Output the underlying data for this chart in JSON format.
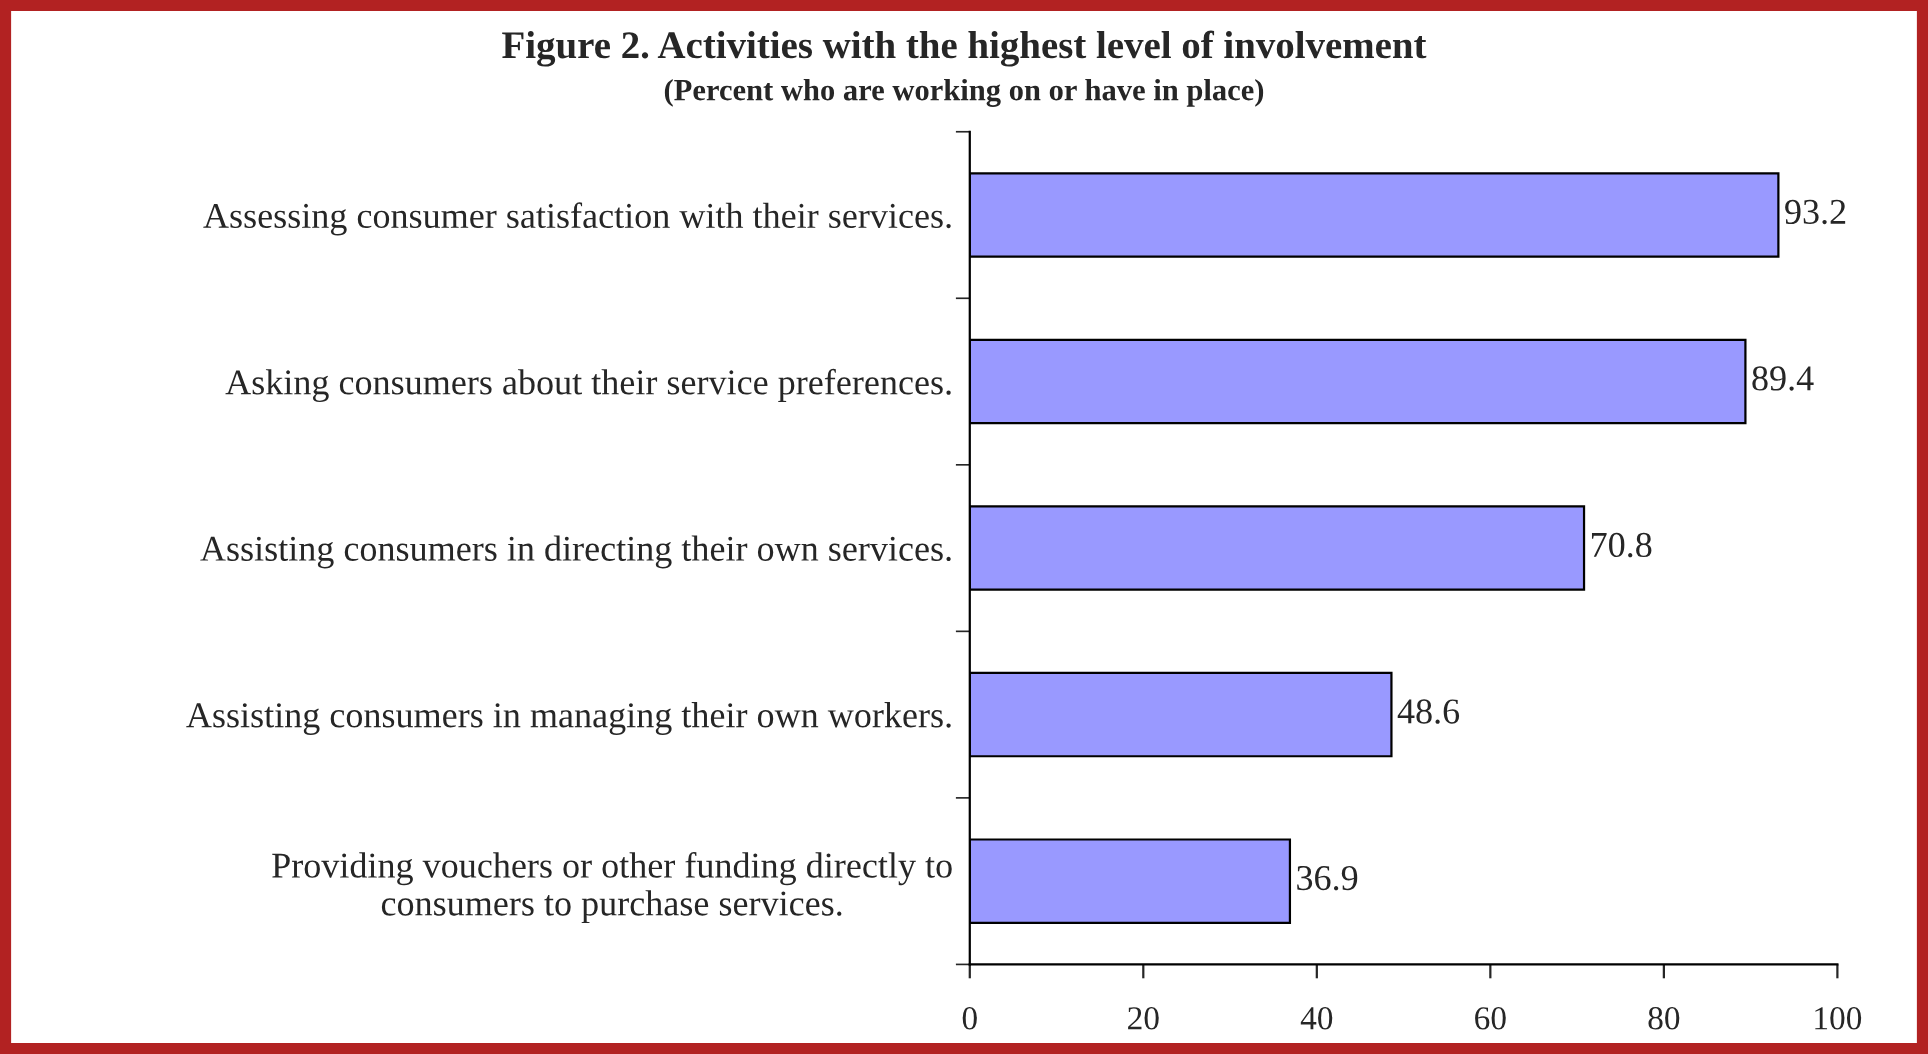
{
  "chart_data": {
    "type": "bar",
    "orientation": "horizontal",
    "title": "Figure 2. Activities with the highest level of involvement",
    "subtitle": "(Percent who are working on or have in place)",
    "categories": [
      "Assessing consumer satisfaction with their services.",
      "Asking consumers about their service preferences.",
      "Assisting consumers in directing their own services.",
      "Assisting consumers in managing their own workers.",
      "Providing vouchers or other funding directly to\nconsumers to purchase services."
    ],
    "values": [
      93.2,
      89.4,
      70.8,
      48.6,
      36.9
    ],
    "color": "#9999ff",
    "xlim": [
      0,
      100
    ],
    "xticks": [
      0,
      20,
      40,
      60,
      80,
      100
    ],
    "data_labels": true
  }
}
